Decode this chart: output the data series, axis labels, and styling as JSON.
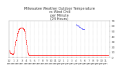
{
  "title": "Milwaukee Weather Outdoor Temperature\nvs Wind Chill\nper Minute\n(24 Hours)",
  "background_color": "#ffffff",
  "plot_bg_color": "#ffffff",
  "grid_color": "#aaaaaa",
  "red_color": "#ff0000",
  "blue_color": "#0000ff",
  "ylim": [
    0,
    70
  ],
  "yticks": [
    0,
    10,
    20,
    30,
    40,
    50,
    60,
    70
  ],
  "n_points": 1440,
  "red_temps": [
    14,
    14,
    13,
    13,
    13,
    12,
    12,
    12,
    11,
    11,
    11,
    10,
    10,
    10,
    10,
    9,
    9,
    9,
    9,
    8,
    8,
    8,
    8,
    8,
    8,
    8,
    8,
    8,
    8,
    8,
    8,
    8,
    8,
    8,
    8,
    7,
    7,
    7,
    7,
    7,
    7,
    7,
    7,
    7,
    7,
    7,
    7,
    7,
    7,
    7,
    7,
    7,
    7,
    7,
    7,
    7,
    7,
    7,
    7,
    7,
    8,
    8,
    8,
    9,
    9,
    10,
    10,
    11,
    11,
    12,
    12,
    13,
    14,
    15,
    16,
    17,
    18,
    19,
    20,
    21,
    22,
    23,
    24,
    25,
    26,
    27,
    28,
    29,
    30,
    31,
    32,
    33,
    33,
    34,
    34,
    34,
    34,
    33,
    33,
    33,
    33,
    33,
    33,
    34,
    34,
    35,
    35,
    36,
    37,
    38,
    39,
    40,
    41,
    42,
    43,
    44,
    45,
    46,
    46,
    47,
    47,
    47,
    48,
    48,
    48,
    49,
    49,
    50,
    50,
    50,
    51,
    51,
    52,
    52,
    53,
    54,
    54,
    55,
    55,
    55,
    55,
    55,
    55,
    55,
    55,
    55,
    55,
    56,
    56,
    56,
    56,
    56,
    56,
    56,
    56,
    56,
    56,
    56,
    56,
    57,
    57,
    57,
    57,
    57,
    57,
    57,
    57,
    57,
    57,
    57,
    57,
    57,
    57,
    57,
    57,
    57,
    57,
    57,
    57,
    57,
    57,
    57,
    57,
    57,
    57,
    57,
    57,
    57,
    57,
    57,
    57,
    57,
    57,
    57,
    56,
    56,
    56,
    56,
    56,
    56,
    56,
    56,
    56,
    55,
    55,
    55,
    55,
    55,
    55,
    54,
    54,
    54,
    54,
    53,
    53,
    53,
    52,
    52,
    52,
    51,
    50,
    50,
    49,
    49,
    48,
    47,
    46,
    46,
    45,
    44,
    43,
    42,
    41,
    40,
    39,
    38,
    37,
    36,
    35,
    34,
    33,
    32,
    31,
    30,
    29,
    28,
    27,
    26,
    25,
    24,
    23,
    22,
    21,
    20,
    19,
    18,
    17,
    16,
    15,
    14,
    14,
    13,
    12,
    12,
    11,
    11,
    10,
    10,
    9,
    9,
    8,
    8,
    8,
    7,
    7,
    7,
    6,
    6,
    6,
    6,
    5,
    5,
    5,
    5,
    5,
    5,
    5,
    5,
    5,
    5,
    5,
    5,
    5,
    5,
    5,
    4,
    4,
    4,
    4,
    4,
    4,
    4,
    4,
    4,
    4,
    4,
    4,
    4,
    4,
    4,
    4,
    4,
    4,
    4,
    4,
    4,
    4,
    4,
    4,
    4,
    4,
    4,
    4,
    4,
    4,
    4,
    4,
    4,
    4,
    4,
    4,
    4,
    4,
    4,
    4,
    4,
    4,
    4,
    4,
    4,
    4,
    4,
    4,
    4,
    4,
    4,
    4,
    4,
    4,
    4,
    4,
    4,
    4,
    4,
    4,
    4,
    4,
    4,
    4,
    4,
    4,
    4,
    4,
    4,
    4,
    4,
    4,
    4,
    4,
    4,
    4,
    4,
    4,
    4,
    4,
    4,
    4,
    4,
    4,
    4,
    4,
    4,
    4,
    4,
    4,
    4,
    4,
    4,
    4,
    4,
    4,
    4,
    4,
    4,
    4,
    4,
    4,
    4,
    4,
    4,
    4,
    4,
    4,
    4,
    4,
    4,
    4,
    4,
    4,
    4,
    4,
    4,
    4,
    4,
    4,
    4,
    4,
    4,
    4,
    4,
    4,
    4,
    4,
    4,
    4,
    4,
    4,
    4,
    4,
    4,
    4,
    4,
    4,
    4,
    4,
    4,
    4,
    4,
    4,
    4,
    4,
    4,
    4,
    4,
    4,
    4,
    4,
    4,
    4,
    4,
    4,
    4,
    4,
    4,
    4,
    4,
    4,
    4,
    4,
    4,
    4,
    4,
    4,
    4,
    4,
    4,
    4,
    4,
    4,
    4,
    4,
    4,
    4,
    4,
    4,
    4,
    4,
    4,
    4,
    4,
    4,
    4,
    4,
    4,
    4,
    4,
    4,
    4,
    4,
    4,
    4,
    4,
    4,
    4,
    4,
    4,
    4,
    4,
    4,
    4,
    4,
    4,
    4,
    4,
    4,
    4,
    4,
    4,
    4,
    4,
    4,
    4,
    4,
    4,
    4,
    4,
    4,
    4,
    4,
    4,
    4,
    4,
    4,
    4,
    4,
    4,
    4,
    4,
    4,
    4,
    4,
    4,
    4,
    4,
    4,
    4,
    4,
    4,
    4,
    4,
    4,
    4,
    4,
    4,
    4,
    4,
    4,
    4,
    4,
    4,
    4,
    4,
    4,
    4,
    4,
    4,
    4,
    4,
    4,
    4,
    4,
    4,
    4,
    4,
    4,
    4,
    4,
    4,
    4,
    4,
    4,
    4,
    4,
    4,
    4,
    4,
    4,
    4,
    4,
    4,
    4,
    4,
    4,
    4,
    4,
    4,
    4,
    4,
    4,
    4,
    4,
    4,
    4,
    4,
    4,
    4,
    4,
    4,
    4,
    4,
    4,
    4,
    4,
    4,
    4,
    4,
    4,
    4,
    4,
    4,
    4,
    4,
    4,
    4,
    4,
    4,
    4,
    4,
    4,
    4,
    4,
    4,
    4,
    4,
    4,
    4,
    4,
    4,
    4,
    4,
    4,
    4,
    4,
    4,
    4,
    4,
    4,
    4,
    4,
    4,
    4,
    4,
    4,
    4,
    4,
    4,
    4,
    4,
    4,
    4,
    4,
    4,
    4,
    4,
    4,
    4,
    4,
    4,
    4,
    4,
    4,
    4,
    4,
    4,
    4,
    4,
    4,
    4,
    4,
    4,
    4,
    4,
    4,
    4,
    4,
    4,
    4,
    4,
    4,
    4,
    4,
    4,
    4,
    4,
    4,
    4,
    4,
    4,
    4,
    4,
    4,
    4,
    4,
    4,
    4,
    4,
    4,
    4,
    4,
    4,
    4,
    4,
    4,
    4,
    4,
    4,
    4,
    4,
    4,
    4,
    4,
    4,
    4,
    4,
    4,
    4,
    4,
    4,
    4,
    4,
    4,
    4,
    4,
    4,
    4,
    4,
    4,
    4,
    4,
    4,
    4,
    4,
    4,
    4,
    4,
    4,
    4,
    4,
    4,
    4,
    4,
    4,
    4,
    4,
    4,
    4,
    4,
    4,
    4,
    4,
    4,
    4,
    4,
    4,
    4,
    4,
    4,
    4,
    4,
    4,
    4,
    4,
    4,
    4,
    4,
    4,
    4,
    4,
    4,
    4,
    4,
    4,
    4,
    4,
    4,
    4,
    4,
    4,
    4,
    4,
    4,
    4,
    4,
    4,
    4,
    4,
    4,
    4,
    4,
    4,
    4,
    4,
    4,
    4,
    4,
    4,
    4,
    4,
    4,
    4,
    4,
    4,
    4,
    4,
    4,
    4,
    4,
    4,
    4,
    4,
    4,
    4,
    4,
    4,
    4,
    4,
    4,
    4,
    4,
    4,
    4,
    4,
    4,
    4,
    4,
    4,
    4,
    4,
    4,
    4,
    4,
    4,
    4,
    4,
    4,
    4,
    4,
    4,
    4,
    4,
    4,
    4,
    4,
    4,
    4,
    4,
    4,
    4,
    4,
    4,
    4,
    4,
    4,
    4,
    4,
    4,
    4,
    4,
    4,
    4,
    4,
    4,
    4,
    4,
    4,
    4,
    4,
    4,
    4,
    4,
    4,
    4,
    4,
    4,
    4,
    4,
    4,
    4,
    4,
    4,
    4,
    4,
    4,
    4,
    4,
    4,
    4,
    4,
    4,
    4,
    4,
    4,
    4,
    4,
    4,
    4,
    4,
    4,
    4,
    4,
    4,
    4,
    4,
    4,
    4,
    4,
    4,
    4,
    4,
    4,
    4,
    4,
    4,
    4,
    4,
    4,
    4,
    4,
    4,
    4,
    4,
    4,
    4,
    4,
    4,
    4,
    4,
    4,
    4,
    4,
    4,
    4,
    4,
    4,
    4,
    4,
    4,
    4,
    4,
    4,
    4,
    4,
    4,
    4,
    4,
    4,
    4,
    4,
    4,
    4,
    4,
    4,
    4,
    4,
    4,
    4,
    4,
    4,
    4,
    4,
    4,
    4,
    4,
    4,
    4,
    4,
    4,
    4,
    4,
    4,
    4,
    4,
    4,
    4,
    4,
    4,
    4,
    4,
    4,
    4,
    4,
    4,
    4,
    4,
    4,
    4,
    4,
    4,
    4,
    4,
    4,
    4,
    4,
    4,
    4,
    4,
    4,
    4,
    4,
    4,
    4,
    4,
    4,
    4,
    4,
    4,
    4,
    4,
    4,
    4,
    4,
    4,
    4,
    4,
    4,
    4,
    4,
    4,
    4,
    4,
    4,
    4,
    4,
    4,
    4,
    4,
    4,
    4,
    4,
    4,
    4,
    4,
    4,
    4,
    4,
    4,
    4,
    4,
    4,
    4,
    4,
    4,
    4,
    4,
    4,
    4,
    4,
    4,
    4,
    4,
    4,
    4,
    4,
    4,
    4,
    4,
    4,
    4,
    4,
    4,
    4,
    4,
    4,
    4,
    4,
    4,
    4,
    4,
    4,
    4,
    4,
    4,
    4,
    4,
    4,
    4,
    4,
    4,
    4,
    4,
    4,
    4,
    4,
    4,
    4,
    4,
    4,
    4,
    4,
    4,
    4,
    4,
    4,
    4,
    4,
    4,
    4,
    4,
    4,
    4,
    4,
    4,
    4,
    4,
    4,
    4,
    4,
    4,
    4,
    4,
    4,
    4,
    4,
    4,
    4,
    4,
    4,
    4,
    4,
    4,
    4,
    4,
    4,
    4,
    4,
    4,
    4,
    4,
    4,
    4,
    4,
    4,
    4,
    4,
    4,
    4,
    4,
    4,
    4,
    4,
    4,
    4,
    4,
    4,
    4,
    4,
    4,
    4,
    4,
    4,
    4,
    4,
    4,
    4,
    4,
    4,
    4,
    4,
    4,
    4,
    4,
    4,
    4,
    4,
    4,
    4,
    4,
    4,
    4,
    4,
    4,
    4,
    4,
    4,
    4,
    4,
    4,
    4,
    4,
    4,
    4,
    4,
    4,
    4,
    4,
    4,
    4,
    4,
    4,
    4,
    4,
    4,
    4,
    4,
    4,
    4,
    4,
    4,
    4,
    4,
    4,
    4,
    4,
    4,
    4,
    4,
    4,
    4,
    4,
    4,
    4,
    4,
    4,
    4,
    4,
    4,
    4,
    4,
    4,
    4,
    4,
    4,
    4,
    4,
    4,
    4,
    4,
    4,
    4,
    4,
    4,
    4,
    4,
    4,
    4,
    4,
    4,
    4,
    4,
    4,
    4,
    4,
    4,
    4,
    4,
    4,
    4,
    4,
    4,
    4,
    4,
    4,
    4,
    4,
    4,
    4,
    4,
    4,
    4,
    4,
    4,
    4,
    4,
    4,
    4,
    4,
    4,
    4,
    4,
    4,
    4,
    4,
    4,
    4,
    4,
    4,
    4,
    4,
    4,
    4,
    4,
    4,
    4,
    4,
    4,
    4,
    4,
    4,
    4,
    4,
    4,
    4,
    4,
    4,
    4,
    4,
    4,
    4,
    4,
    4,
    4,
    4,
    4,
    4,
    4,
    4,
    4,
    4,
    4,
    4,
    4,
    4,
    4,
    4,
    4,
    4,
    4,
    4,
    4,
    4,
    4,
    4,
    4,
    4,
    4,
    4,
    4,
    4,
    4,
    4,
    4,
    4,
    4,
    4,
    4,
    4,
    4,
    4,
    4,
    4,
    4,
    4,
    4,
    4,
    4,
    4,
    4,
    4,
    4,
    4,
    4,
    4,
    4,
    4,
    4,
    4,
    4,
    4,
    4,
    4,
    4,
    4,
    4,
    4,
    4,
    4,
    4,
    4,
    4,
    4,
    4,
    4,
    4,
    4,
    4,
    4,
    4,
    4,
    4,
    4,
    4,
    4,
    4,
    4,
    4,
    4,
    4,
    4,
    4,
    4,
    4,
    4,
    4,
    4,
    4,
    4,
    4,
    4,
    4,
    4,
    4,
    4,
    4,
    4,
    4,
    4,
    4,
    4,
    4,
    4,
    4,
    4,
    4,
    4,
    4,
    4,
    4,
    4,
    4,
    4
  ],
  "blue_temps_x": [
    956,
    960,
    964,
    968,
    972,
    976,
    980,
    984,
    988,
    992,
    996,
    1000,
    1004,
    1008,
    1012,
    1016,
    1020,
    1024,
    1028,
    1032,
    1036,
    1040,
    1044,
    1048,
    1052,
    1056,
    1060,
    1064,
    1068,
    1072
  ],
  "blue_temps_y": [
    62,
    63,
    63,
    62,
    62,
    61,
    61,
    60,
    61,
    62,
    61,
    60,
    59,
    59,
    58,
    58,
    57,
    57,
    57,
    56,
    56,
    56,
    56,
    55,
    55,
    55,
    55,
    55,
    55,
    55
  ],
  "xtick_every": 60,
  "tick_fontsize": 3.0,
  "title_fontsize": 3.5,
  "title_color": "#333333",
  "ylabel_color": "#444444"
}
